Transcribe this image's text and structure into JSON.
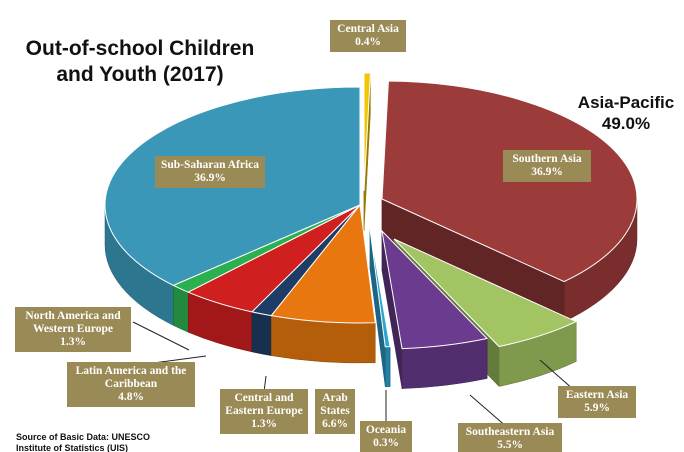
{
  "chart_data": {
    "type": "pie",
    "title": "Out-of-school Children and Youth (2017)",
    "title_lines": [
      "Out-of-school Children",
      "and Youth (2017)"
    ],
    "group_label": {
      "name": "Asia-Pacific",
      "value": "49.0%"
    },
    "source_lines": [
      "Source of Basic Data: UNESCO",
      "Institute of Statistics (UIS)"
    ],
    "slices": [
      {
        "name": "Central Asia",
        "value": 0.4,
        "label": "0.4%",
        "color": "#f2c500",
        "name_lines": [
          "Central Asia"
        ]
      },
      {
        "name": "Southern Asia",
        "value": 36.9,
        "label": "36.9%",
        "color": "#9b3b3a",
        "name_lines": [
          "Southern Asia"
        ]
      },
      {
        "name": "Eastern Asia",
        "value": 5.9,
        "label": "5.9%",
        "color": "#a3c463",
        "name_lines": [
          "Eastern Asia"
        ]
      },
      {
        "name": "Southeastern Asia",
        "value": 5.5,
        "label": "5.5%",
        "color": "#6a3b8e",
        "name_lines": [
          "Southeastern Asia"
        ]
      },
      {
        "name": "Oceania",
        "value": 0.3,
        "label": "0.3%",
        "color": "#2fa3d4",
        "name_lines": [
          "Oceania"
        ]
      },
      {
        "name": "Arab States",
        "value": 6.6,
        "label": "6.6%",
        "color": "#e7770e",
        "name_lines": [
          "Arab",
          "States"
        ]
      },
      {
        "name": "Central and Eastern Europe",
        "value": 1.3,
        "label": "1.3%",
        "color": "#1e3d66",
        "name_lines": [
          "Central and",
          "Eastern Europe"
        ]
      },
      {
        "name": "Latin America and the Caribbean",
        "value": 4.8,
        "label": "4.8%",
        "color": "#d01f1f",
        "name_lines": [
          "Latin America and the",
          "Caribbean"
        ]
      },
      {
        "name": "North America and Western Europe",
        "value": 1.3,
        "label": "1.3%",
        "color": "#2bb04f",
        "name_lines": [
          "North America and",
          "Western Europe"
        ]
      },
      {
        "name": "Sub-Saharan Africa",
        "value": 36.9,
        "label": "36.9%",
        "color": "#3a97b7",
        "name_lines": [
          "Sub-Saharan Africa"
        ]
      }
    ],
    "label_box_color": "#9a8a55"
  }
}
